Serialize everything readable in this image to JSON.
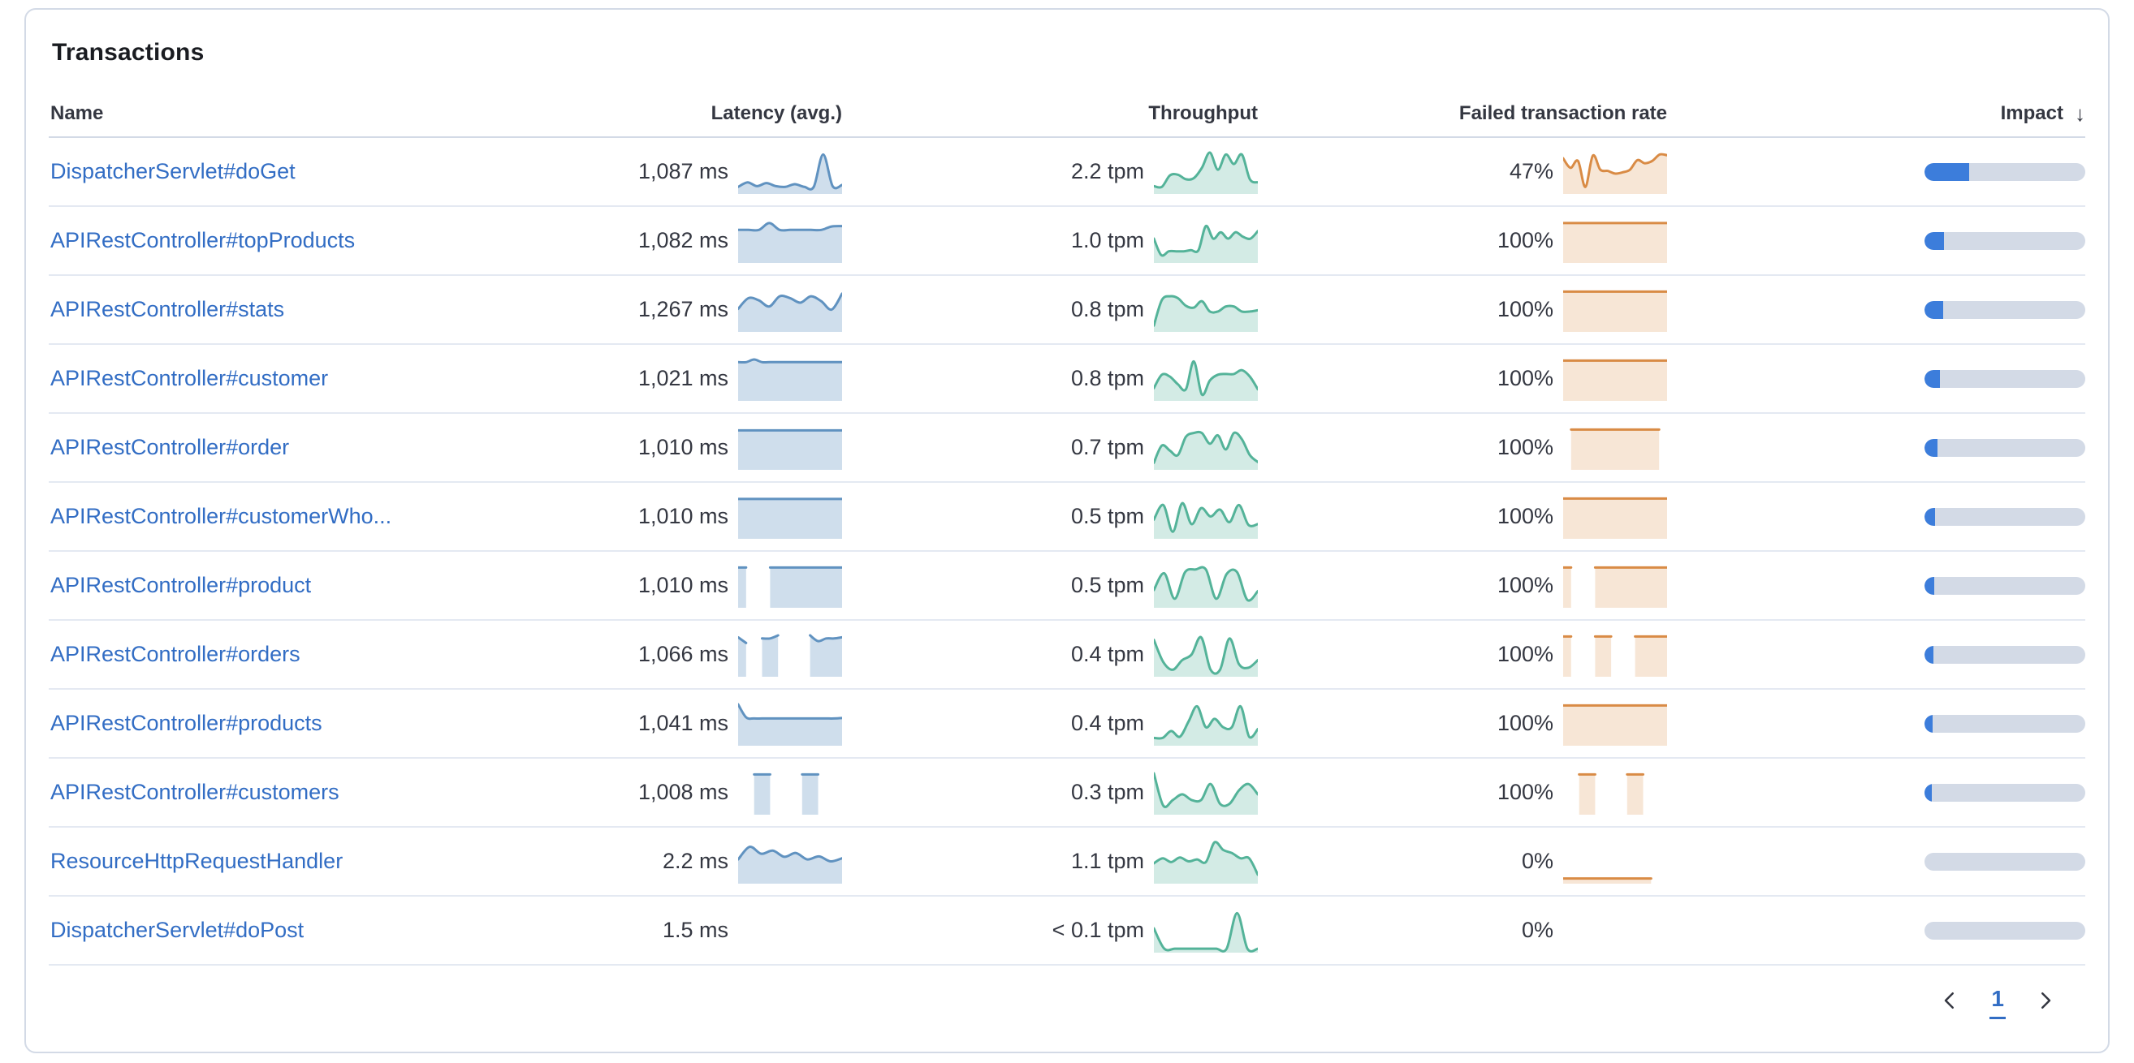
{
  "panel": {
    "title": "Transactions"
  },
  "table": {
    "columns": {
      "name": "Name",
      "latency": "Latency (avg.)",
      "throughput": "Throughput",
      "failed_rate": "Failed transaction rate",
      "impact": "Impact"
    },
    "sort_icon": "↓",
    "rows": [
      {
        "name": "DispatcherServlet#doGet",
        "latency": "1,087 ms",
        "throughput": "2.2 tpm",
        "failed_rate": "47%",
        "impact_pct": 28,
        "latency_spark": [
          0.1,
          0.22,
          0.12,
          0.2,
          0.12,
          0.1,
          0.17,
          0.1,
          0.1,
          0.95,
          0.12,
          0.15
        ],
        "throughput_spark": [
          0.12,
          0.1,
          0.4,
          0.42,
          0.3,
          0.33,
          0.6,
          1.0,
          0.55,
          0.95,
          0.7,
          0.95,
          0.3,
          0.22
        ],
        "failed_spark": [
          0.85,
          0.6,
          0.78,
          0.1,
          0.92,
          0.55,
          0.52,
          0.45,
          0.48,
          0.55,
          0.8,
          0.72,
          0.78,
          0.95,
          0.93
        ]
      },
      {
        "name": "APIRestController#topProducts",
        "latency": "1,082 ms",
        "throughput": "1.0 tpm",
        "failed_rate": "100%",
        "impact_pct": 12,
        "latency_spark": [
          0.78,
          0.78,
          0.78,
          0.96,
          0.78,
          0.78,
          0.78,
          0.78,
          0.78,
          0.87,
          0.88
        ],
        "throughput_spark": [
          0.55,
          0.12,
          0.22,
          0.22,
          0.22,
          0.25,
          0.25,
          0.88,
          0.55,
          0.72,
          0.55,
          0.72,
          0.6,
          0.55,
          0.75
        ],
        "failed_spark": [
          0.96,
          0.96,
          0.96,
          0.96,
          0.96,
          0.96,
          0.96,
          0.96,
          0.96,
          0.96,
          0.96,
          0.96,
          0.96,
          0.96
        ]
      },
      {
        "name": "APIRestController#stats",
        "latency": "1,267 ms",
        "throughput": "0.8 tpm",
        "failed_rate": "100%",
        "impact_pct": 11.5,
        "latency_spark": [
          0.52,
          0.8,
          0.74,
          0.58,
          0.85,
          0.8,
          0.68,
          0.85,
          0.72,
          0.5,
          0.92
        ],
        "throughput_spark": [
          0.08,
          0.75,
          0.85,
          0.8,
          0.6,
          0.55,
          0.72,
          0.45,
          0.45,
          0.58,
          0.58,
          0.45,
          0.45,
          0.48
        ],
        "failed_spark": [
          0.97,
          0.97,
          0.97,
          0.97,
          0.97,
          0.97,
          0.97,
          0.97,
          0.97,
          0.97,
          0.97,
          0.97,
          0.97,
          0.97
        ]
      },
      {
        "name": "APIRestController#customer",
        "latency": "1,021 ms",
        "throughput": "0.8 tpm",
        "failed_rate": "100%",
        "impact_pct": 9.5,
        "latency_spark": [
          0.93,
          0.93,
          1.0,
          0.93,
          0.93,
          0.93,
          0.93,
          0.93,
          0.93,
          0.93,
          0.93,
          0.93,
          0.93,
          0.93
        ],
        "throughput_spark": [
          0.25,
          0.6,
          0.55,
          0.35,
          0.22,
          0.95,
          0.08,
          0.45,
          0.6,
          0.62,
          0.62,
          0.72,
          0.55,
          0.22
        ],
        "failed_spark": [
          0.97,
          0.97,
          0.97,
          0.97,
          0.97,
          0.97,
          0.97,
          0.97,
          0.97,
          0.97,
          0.97,
          0.97,
          0.97,
          0.97
        ]
      },
      {
        "name": "APIRestController#order",
        "latency": "1,010 ms",
        "throughput": "0.7 tpm",
        "failed_rate": "100%",
        "impact_pct": 8,
        "latency_spark": [
          0.95,
          0.95,
          0.95,
          0.95,
          0.95,
          0.95,
          0.95,
          0.95,
          0.95,
          0.95,
          0.95,
          0.95,
          0.95,
          0.95
        ],
        "throughput_spark": [
          0.1,
          0.55,
          0.42,
          0.3,
          0.78,
          0.88,
          0.88,
          0.6,
          0.82,
          0.45,
          0.88,
          0.72,
          0.3,
          0.12
        ],
        "failed_spark": [
          null,
          0.97,
          0.97,
          0.97,
          0.97,
          0.97,
          0.97,
          0.97,
          0.97,
          0.97,
          0.97,
          0.97,
          0.97,
          null
        ]
      },
      {
        "name": "APIRestController#customerWho...",
        "latency": "1,010 ms",
        "throughput": "0.5 tpm",
        "failed_rate": "100%",
        "impact_pct": 6.5,
        "latency_spark": [
          0.96,
          0.96,
          0.96,
          0.96,
          0.96,
          0.96,
          0.96,
          0.96,
          0.96,
          0.96,
          0.96,
          0.96,
          0.96,
          0.96
        ],
        "throughput_spark": [
          0.42,
          0.8,
          0.1,
          0.85,
          0.3,
          0.72,
          0.5,
          0.68,
          0.35,
          0.8,
          0.28,
          0.3
        ],
        "failed_spark": [
          0.97,
          0.97,
          0.97,
          0.97,
          0.97,
          0.97,
          0.97,
          0.97,
          0.97,
          0.97,
          0.97,
          0.97,
          0.97,
          0.97
        ]
      },
      {
        "name": "APIRestController#product",
        "latency": "1,010 ms",
        "throughput": "0.5 tpm",
        "failed_rate": "100%",
        "impact_pct": 6,
        "latency_spark": [
          0.97,
          0.97,
          null,
          null,
          0.97,
          0.97,
          0.97,
          0.97,
          0.97,
          0.97,
          0.97,
          0.97,
          0.97,
          0.97
        ],
        "throughput_spark": [
          0.38,
          0.82,
          0.15,
          0.85,
          0.92,
          0.92,
          0.15,
          0.8,
          0.85,
          0.12,
          0.35
        ],
        "failed_spark": [
          0.97,
          0.97,
          null,
          null,
          0.97,
          0.97,
          0.97,
          0.97,
          0.97,
          0.97,
          0.97,
          0.97,
          0.97,
          0.97
        ]
      },
      {
        "name": "APIRestController#orders",
        "latency": "1,066 ms",
        "throughput": "0.4 tpm",
        "failed_rate": "100%",
        "impact_pct": 5.5,
        "latency_spark": [
          0.95,
          0.8,
          null,
          0.92,
          0.92,
          1.0,
          null,
          null,
          null,
          1.0,
          0.85,
          0.92,
          0.92,
          0.95
        ],
        "throughput_spark": [
          0.88,
          0.3,
          0.1,
          0.35,
          0.5,
          0.95,
          0.1,
          0.1,
          0.92,
          0.25,
          0.15,
          0.35
        ],
        "failed_spark": [
          0.97,
          0.97,
          null,
          null,
          0.97,
          0.97,
          0.97,
          null,
          null,
          0.97,
          0.97,
          0.97,
          0.97,
          0.97
        ]
      },
      {
        "name": "APIRestController#products",
        "latency": "1,041 ms",
        "throughput": "0.4 tpm",
        "failed_rate": "100%",
        "impact_pct": 5,
        "latency_spark": [
          1.0,
          0.66,
          0.63,
          0.63,
          0.63,
          0.63,
          0.63,
          0.63,
          0.63,
          0.63,
          0.63,
          0.63,
          0.63,
          0.64
        ],
        "throughput_spark": [
          0.12,
          0.12,
          0.3,
          0.15,
          0.55,
          0.95,
          0.4,
          0.62,
          0.4,
          0.4,
          0.95,
          0.15,
          0.35
        ],
        "failed_spark": [
          0.97,
          0.97,
          0.97,
          0.97,
          0.97,
          0.97,
          0.97,
          0.97,
          0.97,
          0.97,
          0.97,
          0.97,
          0.97,
          0.97
        ]
      },
      {
        "name": "APIRestController#customers",
        "latency": "1,008 ms",
        "throughput": "0.3 tpm",
        "failed_rate": "100%",
        "impact_pct": 4.5,
        "latency_spark": [
          null,
          null,
          0.97,
          0.97,
          0.97,
          null,
          null,
          null,
          0.97,
          0.97,
          0.97,
          null,
          null,
          null
        ],
        "throughput_spark": [
          1.0,
          0.15,
          0.3,
          0.45,
          0.3,
          0.3,
          0.72,
          0.2,
          0.2,
          0.55,
          0.72,
          0.45
        ],
        "failed_spark": [
          null,
          null,
          0.97,
          0.97,
          0.97,
          null,
          null,
          null,
          0.97,
          0.97,
          0.97,
          null,
          null,
          null
        ]
      },
      {
        "name": "ResourceHttpRequestHandler",
        "latency": "2.2 ms",
        "throughput": "1.1 tpm",
        "failed_rate": "0%",
        "impact_pct": 0,
        "latency_spark": [
          0.55,
          0.88,
          0.7,
          0.78,
          0.62,
          0.72,
          0.55,
          0.63,
          0.5,
          0.58
        ],
        "throughput_spark": [
          0.45,
          0.58,
          0.48,
          0.6,
          0.5,
          0.55,
          0.48,
          1.0,
          0.8,
          0.72,
          0.58,
          0.58,
          0.15
        ],
        "failed_spark": [
          0.05,
          0.05,
          0.05,
          0.05,
          0.05,
          0.05,
          0.05,
          0.05,
          0.05,
          0.05,
          0.05,
          0.05,
          null,
          null
        ]
      },
      {
        "name": "DispatcherServlet#doPost",
        "latency": "1.5 ms",
        "throughput": "< 0.1 tpm",
        "failed_rate": "0%",
        "impact_pct": 0,
        "latency_spark": [],
        "throughput_spark": [
          0.55,
          0.02,
          0.02,
          0.02,
          0.02,
          0.02,
          0.02,
          0.02,
          0.95,
          0.02,
          0.02
        ],
        "failed_spark": []
      }
    ]
  },
  "pagination": {
    "page": "1"
  },
  "colors": {
    "latency_line": "#6092C0",
    "latency_fill": "rgba(96,146,192,0.30)",
    "throughput_line": "#54B399",
    "throughput_fill": "rgba(84,179,153,0.26)",
    "failed_line": "#D98B45",
    "failed_fill": "rgba(217,139,69,0.22)",
    "impact_fill": "#3C7DDB",
    "impact_track": "#D3DAE6",
    "link": "#326DC4"
  }
}
